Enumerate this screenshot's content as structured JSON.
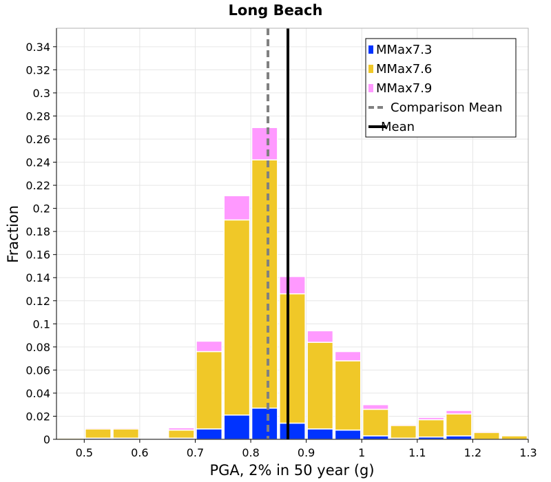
{
  "chart_data": {
    "type": "bar",
    "stacked": true,
    "title": "Long Beach",
    "xlabel": "PGA, 2% in 50 year (g)",
    "ylabel": "Fraction",
    "xlim": [
      0.45,
      1.3
    ],
    "ylim": [
      0,
      0.356
    ],
    "xticks": [
      "0.5",
      "0.6",
      "0.7",
      "0.8",
      "0.9",
      "1",
      "1.1",
      "1.2",
      "1.3"
    ],
    "yticks": [
      "0",
      "0.02",
      "0.04",
      "0.06",
      "0.08",
      "0.1",
      "0.12",
      "0.14",
      "0.16",
      "0.18",
      "0.2",
      "0.22",
      "0.24",
      "0.26",
      "0.28",
      "0.3",
      "0.32",
      "0.34"
    ],
    "bin_width": 0.05,
    "x": [
      0.475,
      0.525,
      0.575,
      0.625,
      0.675,
      0.725,
      0.775,
      0.825,
      0.875,
      0.925,
      0.975,
      1.025,
      1.075,
      1.125,
      1.175,
      1.225,
      1.275
    ],
    "series": [
      {
        "name": "MMax7.3",
        "color": "#0033ff",
        "values": [
          0,
          0.001,
          0.001,
          0,
          0.001,
          0.009,
          0.021,
          0.027,
          0.014,
          0.009,
          0.008,
          0.003,
          0.001,
          0.002,
          0.003,
          0,
          0
        ]
      },
      {
        "name": "MMax7.6",
        "color": "#f0c828",
        "values": [
          0.001,
          0.008,
          0.008,
          0.0005,
          0.007,
          0.067,
          0.169,
          0.215,
          0.112,
          0.075,
          0.06,
          0.023,
          0.011,
          0.015,
          0.019,
          0.006,
          0.003
        ]
      },
      {
        "name": "MMax7.9",
        "color": "#ff99ff",
        "values": [
          0,
          0.001,
          0.001,
          0,
          0.002,
          0.009,
          0.021,
          0.028,
          0.015,
          0.01,
          0.008,
          0.004,
          0.001,
          0.002,
          0.003,
          0.001,
          0
        ]
      }
    ],
    "reference_lines": [
      {
        "name": "Comparison Mean",
        "x": 0.831,
        "style": "dashed",
        "color": "#808080"
      },
      {
        "name": "Mean",
        "x": 0.867,
        "style": "solid",
        "color": "#000000"
      }
    ],
    "legend_position": "top-right",
    "grid": true
  }
}
